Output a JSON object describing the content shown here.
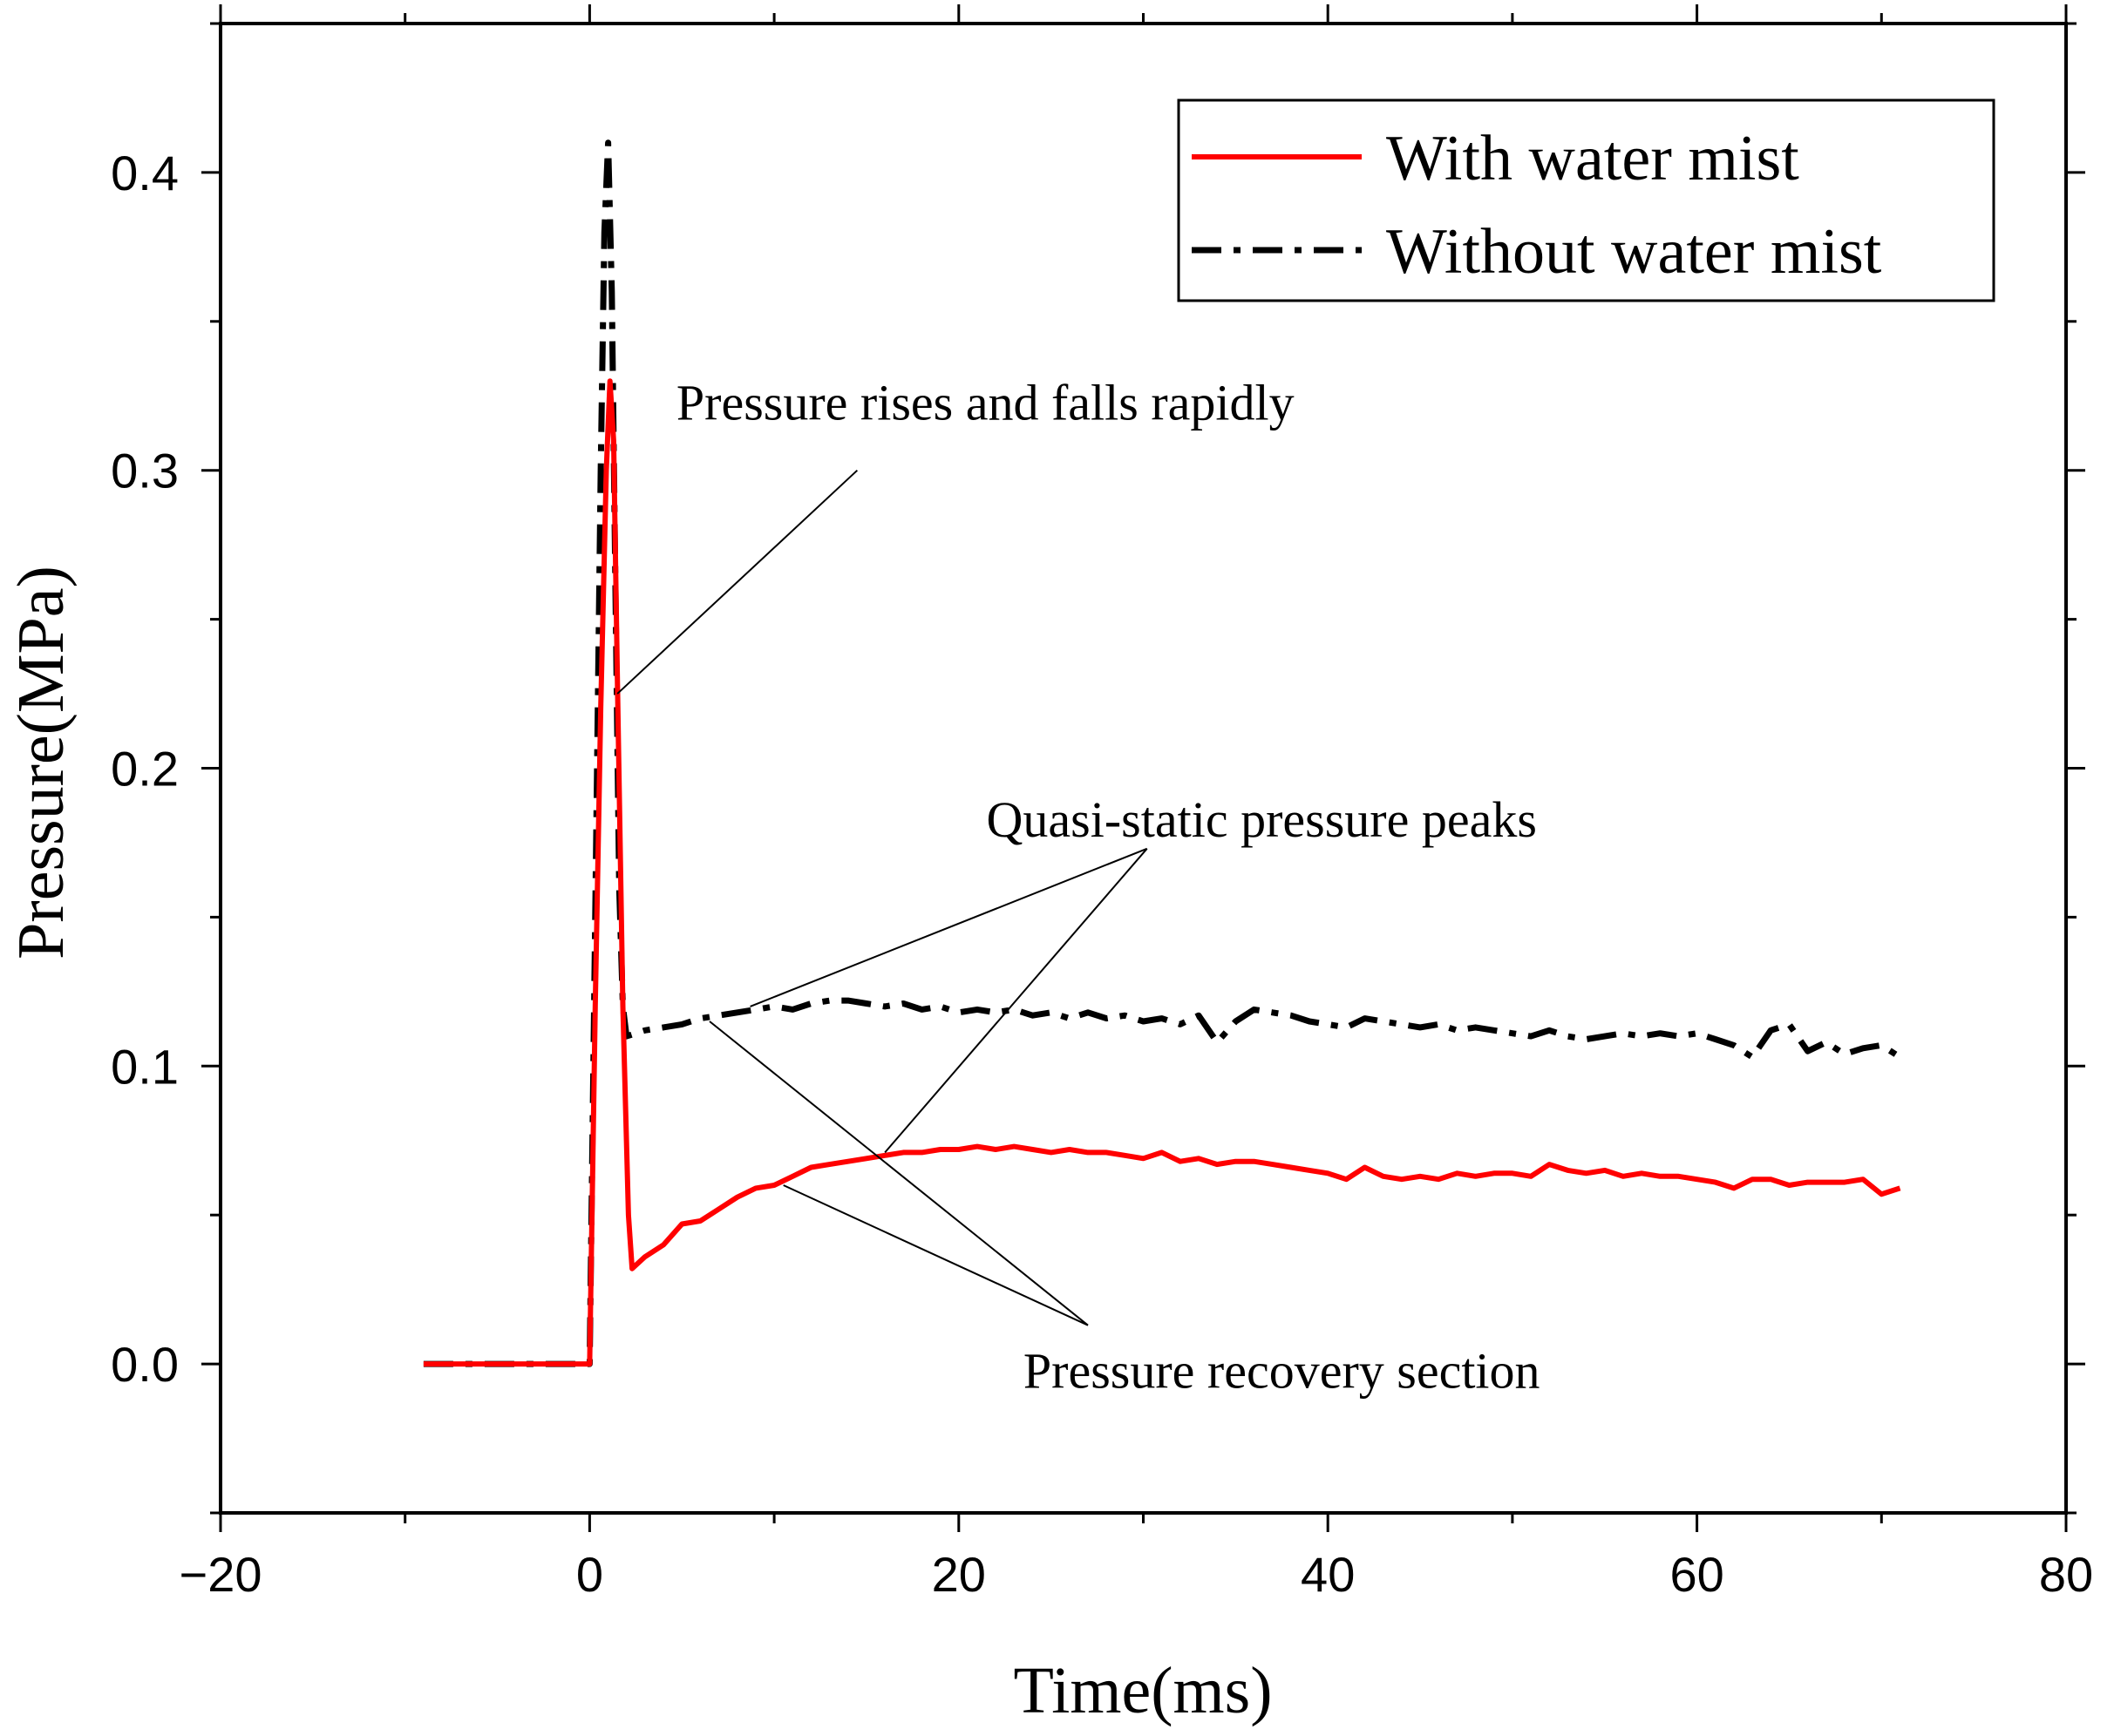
{
  "chart_data": {
    "type": "line",
    "title": "",
    "xlabel": "Time(ms)",
    "ylabel": "Pressure(MPa)",
    "xlim": [
      -20,
      80
    ],
    "ylim": [
      -0.05,
      0.45
    ],
    "xticks": [
      -20,
      0,
      20,
      40,
      60,
      80
    ],
    "xtick_labels": [
      "−20",
      "0",
      "20",
      "40",
      "60",
      "80"
    ],
    "yticks": [
      0.0,
      0.1,
      0.2,
      0.3,
      0.4
    ],
    "ytick_labels": [
      "0.0",
      "0.1",
      "0.2",
      "0.3",
      "0.4"
    ],
    "grid": false,
    "legend_position": "top-right",
    "series": [
      {
        "name": "With water mist",
        "color": "#ff0000",
        "style": "solid",
        "x": [
          -9,
          0,
          0.3,
          0.6,
          0.9,
          1.1,
          1.3,
          1.5,
          1.8,
          2.1,
          2.3,
          3,
          4,
          5,
          6,
          7,
          8,
          9,
          10,
          11,
          12,
          13,
          14,
          15,
          16,
          17,
          18,
          19,
          20,
          21,
          22,
          23,
          24,
          25,
          26,
          27,
          28,
          29,
          30,
          31,
          32,
          33,
          34,
          35,
          36,
          37,
          38,
          39,
          40,
          41,
          42,
          43,
          44,
          45,
          46,
          47,
          48,
          49,
          50,
          51,
          52,
          53,
          54,
          55,
          56,
          57,
          58,
          59,
          60,
          61,
          62,
          63,
          64,
          65,
          66,
          67,
          68,
          69,
          70,
          71
        ],
        "y": [
          0.0,
          0.0,
          0.12,
          0.22,
          0.3,
          0.33,
          0.31,
          0.23,
          0.12,
          0.05,
          0.032,
          0.036,
          0.04,
          0.047,
          0.048,
          0.052,
          0.056,
          0.059,
          0.06,
          0.063,
          0.066,
          0.067,
          0.068,
          0.069,
          0.07,
          0.071,
          0.071,
          0.072,
          0.072,
          0.073,
          0.072,
          0.073,
          0.072,
          0.071,
          0.072,
          0.071,
          0.071,
          0.07,
          0.069,
          0.071,
          0.068,
          0.069,
          0.067,
          0.068,
          0.068,
          0.067,
          0.066,
          0.065,
          0.064,
          0.062,
          0.066,
          0.063,
          0.062,
          0.063,
          0.062,
          0.064,
          0.063,
          0.064,
          0.064,
          0.063,
          0.067,
          0.065,
          0.064,
          0.065,
          0.063,
          0.064,
          0.063,
          0.063,
          0.062,
          0.061,
          0.059,
          0.062,
          0.062,
          0.06,
          0.061,
          0.061,
          0.061,
          0.062,
          0.057,
          0.059
        ]
      },
      {
        "name": "Without water mist",
        "color": "#000000",
        "style": "dashdot",
        "x": [
          -9,
          0,
          0.3,
          0.6,
          0.8,
          1.0,
          1.2,
          1.4,
          1.6,
          1.8,
          2.0,
          3,
          4,
          5,
          6,
          7,
          8,
          9,
          10,
          11,
          12,
          13,
          14,
          15,
          16,
          17,
          18,
          19,
          20,
          21,
          22,
          23,
          24,
          25,
          26,
          27,
          28,
          29,
          30,
          31,
          32,
          33,
          34,
          35,
          36,
          37,
          38,
          39,
          40,
          41,
          42,
          43,
          44,
          45,
          46,
          47,
          48,
          49,
          50,
          51,
          52,
          53,
          54,
          55,
          56,
          57,
          58,
          59,
          60,
          61,
          62,
          63,
          64,
          65,
          66,
          67,
          68,
          69,
          70,
          71
        ],
        "y": [
          0.0,
          0.0,
          0.15,
          0.3,
          0.38,
          0.41,
          0.36,
          0.26,
          0.16,
          0.12,
          0.11,
          0.112,
          0.113,
          0.114,
          0.116,
          0.117,
          0.118,
          0.119,
          0.12,
          0.119,
          0.121,
          0.122,
          0.122,
          0.121,
          0.12,
          0.121,
          0.119,
          0.12,
          0.118,
          0.119,
          0.118,
          0.119,
          0.117,
          0.118,
          0.116,
          0.118,
          0.116,
          0.117,
          0.115,
          0.116,
          0.114,
          0.117,
          0.108,
          0.115,
          0.119,
          0.118,
          0.117,
          0.115,
          0.114,
          0.113,
          0.116,
          0.115,
          0.114,
          0.113,
          0.114,
          0.112,
          0.113,
          0.112,
          0.111,
          0.11,
          0.112,
          0.11,
          0.109,
          0.11,
          0.111,
          0.11,
          0.111,
          0.11,
          0.111,
          0.109,
          0.107,
          0.103,
          0.112,
          0.114,
          0.105,
          0.108,
          0.104,
          0.106,
          0.107,
          0.103
        ]
      }
    ],
    "annotations": [
      {
        "text": "Pressure rises and falls rapidly",
        "pos": [
          4.7,
          0.317
        ],
        "anchor": "start",
        "pointers": [
          {
            "from": [
              14.5,
              0.3
            ],
            "to": [
              1.5,
              0.225
            ]
          }
        ]
      },
      {
        "text": "Quasi-static pressure peaks",
        "pos": [
          21.5,
          0.177
        ],
        "anchor": "start",
        "pointers": [
          {
            "from": [
              30.2,
              0.173
            ],
            "to": [
              8.7,
              0.12
            ]
          },
          {
            "from": [
              30.2,
              0.173
            ],
            "to": [
              16.0,
              0.071
            ]
          }
        ]
      },
      {
        "text": "Pressure recovery section",
        "pos": [
          23.5,
          -0.008
        ],
        "anchor": "start",
        "pointers": [
          {
            "from": [
              27.0,
              0.013
            ],
            "to": [
              6.5,
              0.115
            ]
          },
          {
            "from": [
              27.0,
              0.013
            ],
            "to": [
              10.5,
              0.06
            ]
          }
        ]
      }
    ]
  }
}
